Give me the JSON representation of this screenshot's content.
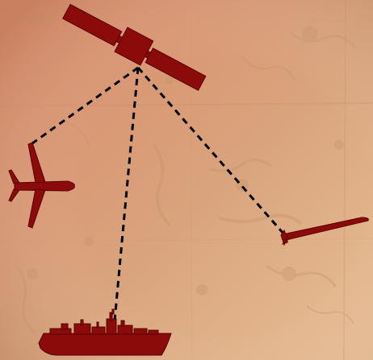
{
  "colors": {
    "background_light": "#e8bf96",
    "background_warm": "#d98a6a",
    "background_mid": "#d9a47d",
    "map_relief": "#c49268",
    "icon_fill": "#8b0a0a",
    "icon_stroke": "#5a0000",
    "link_line": "#000000"
  },
  "scene": {
    "background": "aged-map-texture",
    "hub": {
      "icon": "satellite-icon"
    },
    "nodes": [
      {
        "id": "aircraft",
        "icon": "airplane-icon"
      },
      {
        "id": "missile",
        "icon": "missile-icon"
      },
      {
        "id": "ship",
        "icon": "warship-icon"
      }
    ],
    "links": [
      {
        "from": "satellite",
        "to": "aircraft",
        "style": "dashed"
      },
      {
        "from": "satellite",
        "to": "ship",
        "style": "dashed"
      },
      {
        "from": "satellite",
        "to": "missile",
        "style": "dashed"
      }
    ]
  }
}
